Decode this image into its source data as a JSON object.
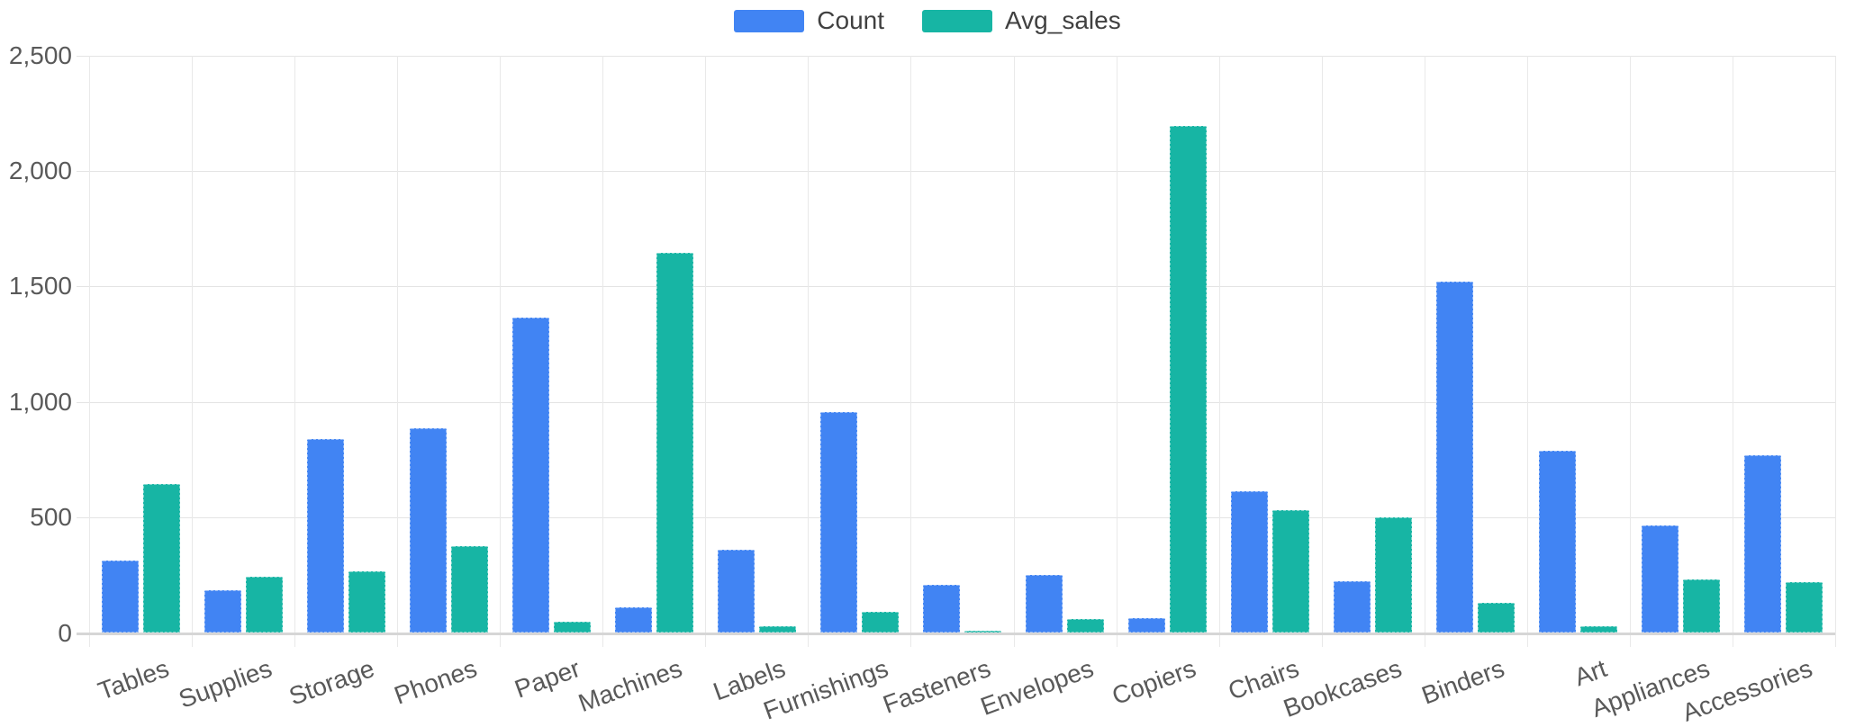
{
  "chart_data": {
    "type": "bar",
    "title": "",
    "xlabel": "",
    "ylabel": "",
    "grid": true,
    "legend_position": "top-center",
    "categories": [
      "Tables",
      "Supplies",
      "Storage",
      "Phones",
      "Paper",
      "Machines",
      "Labels",
      "Furnishings",
      "Fasteners",
      "Envelopes",
      "Copiers",
      "Chairs",
      "Bookcases",
      "Binders",
      "Art",
      "Appliances",
      "Accessories"
    ],
    "series": [
      {
        "name": "Count",
        "color": "#4184f3",
        "values": [
          315,
          185,
          840,
          885,
          1365,
          110,
          360,
          955,
          210,
          250,
          65,
          615,
          225,
          1520,
          790,
          465,
          770
        ]
      },
      {
        "name": "Avg_sales",
        "color": "#17b5a4",
        "values": [
          645,
          245,
          265,
          375,
          50,
          1645,
          30,
          90,
          10,
          60,
          2195,
          530,
          500,
          130,
          30,
          230,
          220
        ]
      }
    ],
    "y_axis": {
      "min": 0,
      "max": 2500,
      "tick_interval": 500,
      "tick_labels": [
        "0",
        "500",
        "1,000",
        "1,500",
        "2,000",
        "2,500"
      ]
    }
  },
  "legend": {
    "items": [
      {
        "label": "Count",
        "color": "#4184f3"
      },
      {
        "label": "Avg_sales",
        "color": "#17b5a4"
      }
    ]
  },
  "colors": {
    "background": "#ffffff",
    "gridline": "#e4e4e4",
    "axis_line": "#d6d6d6",
    "tick_text": "#595959",
    "legend_text": "#404040"
  }
}
